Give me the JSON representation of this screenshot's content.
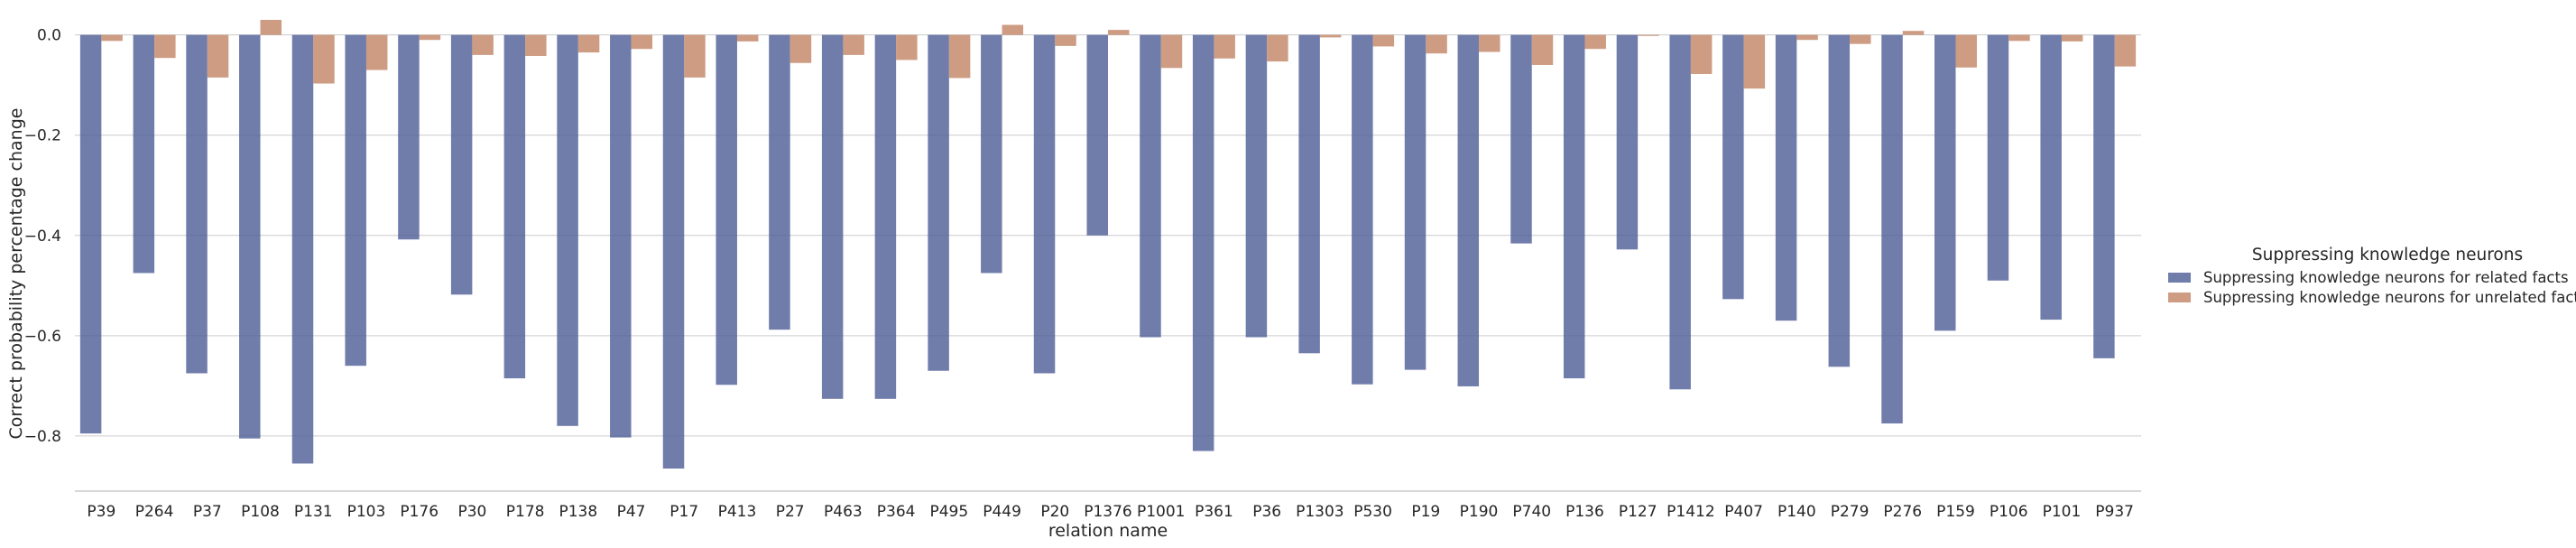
{
  "chart_data": {
    "type": "bar",
    "title": "",
    "xlabel": "relation name",
    "ylabel": "Correct probability percentage change",
    "ylim": [
      -0.91,
      0.03
    ],
    "yticks": [
      0.0,
      -0.2,
      -0.4,
      -0.6,
      -0.8
    ],
    "ytick_labels": [
      "0.0",
      "−0.2",
      "−0.4",
      "−0.6",
      "−0.8"
    ],
    "grid": "horizontal",
    "legend_position": "right",
    "legend_title": "Suppressing knowledge neurons",
    "categories": [
      "P39",
      "P264",
      "P37",
      "P108",
      "P131",
      "P103",
      "P176",
      "P30",
      "P178",
      "P138",
      "P47",
      "P17",
      "P413",
      "P27",
      "P463",
      "P364",
      "P495",
      "P449",
      "P20",
      "P1376",
      "P1001",
      "P361",
      "P36",
      "P1303",
      "P530",
      "P19",
      "P190",
      "P740",
      "P136",
      "P127",
      "P1412",
      "P407",
      "P140",
      "P279",
      "P276",
      "P159",
      "P106",
      "P101",
      "P937"
    ],
    "series": [
      {
        "name": "Suppressing knowledge neurons for related facts",
        "color": "#4C5D96",
        "values": [
          -0.795,
          -0.475,
          -0.675,
          -0.805,
          -0.855,
          -0.66,
          -0.408,
          -0.518,
          -0.685,
          -0.78,
          -0.803,
          -0.865,
          -0.698,
          -0.588,
          -0.726,
          -0.726,
          -0.67,
          -0.475,
          -0.675,
          -0.4,
          -0.603,
          -0.83,
          -0.603,
          -0.635,
          -0.697,
          -0.668,
          -0.701,
          -0.416,
          -0.685,
          -0.428,
          -0.707,
          -0.527,
          -0.57,
          -0.662,
          -0.775,
          -0.59,
          -0.49,
          -0.568,
          -0.645
        ]
      },
      {
        "name": "Suppressing knowledge neurons for unrelated facts",
        "color": "#C08364",
        "values": [
          -0.012,
          -0.046,
          -0.085,
          0.03,
          -0.097,
          -0.07,
          -0.01,
          -0.04,
          -0.042,
          -0.035,
          -0.028,
          -0.085,
          -0.013,
          -0.056,
          -0.04,
          -0.05,
          -0.086,
          0.02,
          -0.022,
          0.01,
          -0.066,
          -0.047,
          -0.053,
          -0.005,
          -0.023,
          -0.037,
          -0.034,
          -0.06,
          -0.028,
          -0.002,
          -0.078,
          -0.107,
          -0.01,
          -0.018,
          0.008,
          -0.065,
          -0.012,
          -0.013,
          -0.063
        ]
      }
    ]
  }
}
